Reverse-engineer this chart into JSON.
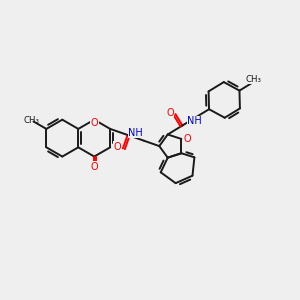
{
  "bg": "#efefef",
  "bc": "#1a1a1a",
  "oc": "#ff0000",
  "nc": "#0000cc",
  "lw": 1.4,
  "figsize": [
    3.0,
    3.0
  ],
  "dpi": 100,
  "xlim": [
    0,
    10
  ],
  "ylim": [
    0,
    10
  ]
}
